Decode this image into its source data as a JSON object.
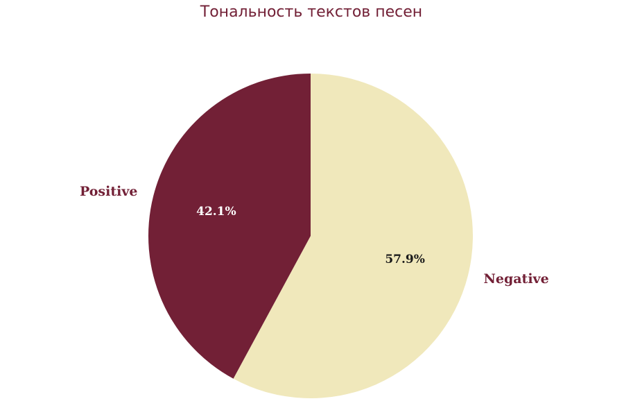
{
  "chart_data": {
    "type": "pie",
    "title": "Тональность текстов песен",
    "title_color": "#722036",
    "startangle_deg": 90,
    "direction": "clockwise",
    "slices": [
      {
        "label": "Negative",
        "value": 57.9,
        "pct_label": "57.9%",
        "color": "#f0e8bb",
        "label_color": "#722036",
        "pct_color": "#1a1a1a"
      },
      {
        "label": "Positive",
        "value": 42.1,
        "pct_label": "42.1%",
        "color": "#722036",
        "label_color": "#722036",
        "pct_color": "#ffffff"
      }
    ]
  }
}
